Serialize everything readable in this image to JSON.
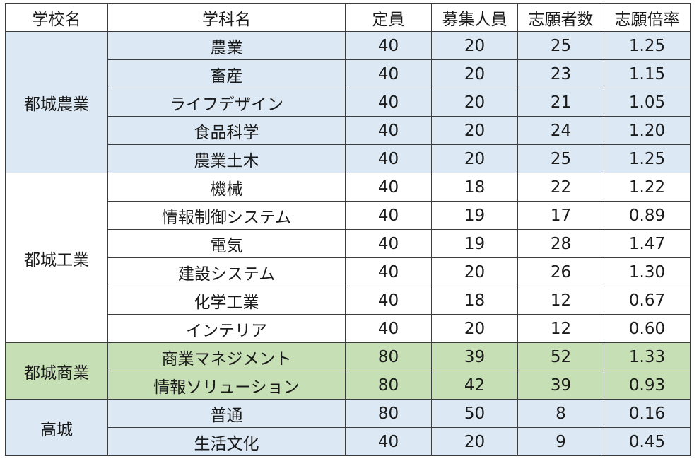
{
  "header": {
    "school": "学校名",
    "department": "学科名",
    "capacity": "定員",
    "recruit": "募集人員",
    "applicants": "志願者数",
    "ratio": "志願倍率"
  },
  "colors": {
    "blue": "#dce9f5",
    "white": "#ffffff",
    "green": "#c6dfb5",
    "border": "#3c3c3c"
  },
  "groups": [
    {
      "school": "都城農業",
      "color": "#dce9f5",
      "rows": [
        {
          "department": "農業",
          "capacity": "40",
          "recruit": "20",
          "applicants": "25",
          "ratio": "1.25"
        },
        {
          "department": "畜産",
          "capacity": "40",
          "recruit": "20",
          "applicants": "23",
          "ratio": "1.15"
        },
        {
          "department": "ライフデザイン",
          "capacity": "40",
          "recruit": "20",
          "applicants": "21",
          "ratio": "1.05"
        },
        {
          "department": "食品科学",
          "capacity": "40",
          "recruit": "20",
          "applicants": "24",
          "ratio": "1.20"
        },
        {
          "department": "農業土木",
          "capacity": "40",
          "recruit": "20",
          "applicants": "25",
          "ratio": "1.25"
        }
      ]
    },
    {
      "school": "都城工業",
      "color": "#ffffff",
      "rows": [
        {
          "department": "機械",
          "capacity": "40",
          "recruit": "18",
          "applicants": "22",
          "ratio": "1.22"
        },
        {
          "department": "情報制御システム",
          "capacity": "40",
          "recruit": "19",
          "applicants": "17",
          "ratio": "0.89"
        },
        {
          "department": "電気",
          "capacity": "40",
          "recruit": "19",
          "applicants": "28",
          "ratio": "1.47"
        },
        {
          "department": "建設システム",
          "capacity": "40",
          "recruit": "20",
          "applicants": "26",
          "ratio": "1.30"
        },
        {
          "department": "化学工業",
          "capacity": "40",
          "recruit": "18",
          "applicants": "12",
          "ratio": "0.67"
        },
        {
          "department": "インテリア",
          "capacity": "40",
          "recruit": "20",
          "applicants": "12",
          "ratio": "0.60"
        }
      ]
    },
    {
      "school": "都城商業",
      "color": "#c6dfb5",
      "rows": [
        {
          "department": "商業マネジメント",
          "capacity": "80",
          "recruit": "39",
          "applicants": "52",
          "ratio": "1.33"
        },
        {
          "department": "情報ソリューション",
          "capacity": "80",
          "recruit": "42",
          "applicants": "39",
          "ratio": "0.93"
        }
      ]
    },
    {
      "school": "高城",
      "color": "#dce9f5",
      "rows": [
        {
          "department": "普通",
          "capacity": "80",
          "recruit": "50",
          "applicants": "8",
          "ratio": "0.16"
        },
        {
          "department": "生活文化",
          "capacity": "40",
          "recruit": "20",
          "applicants": "9",
          "ratio": "0.45"
        }
      ]
    }
  ]
}
